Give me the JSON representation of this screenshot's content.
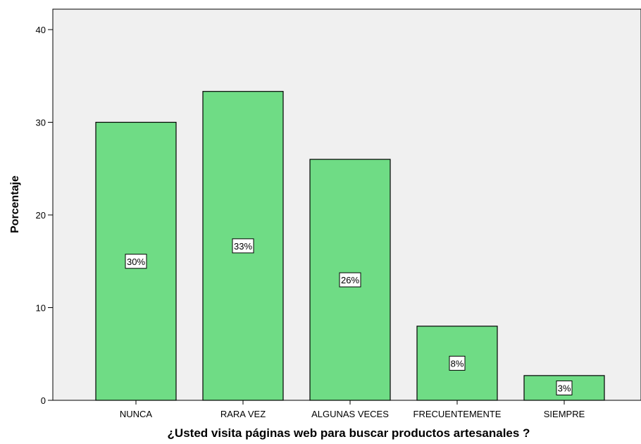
{
  "chart_data": {
    "type": "bar",
    "categories": [
      "NUNCA",
      "RARA VEZ",
      "ALGUNAS VECES",
      "FRECUENTEMENTE",
      "SIEMPRE"
    ],
    "values": [
      30,
      33.33,
      26,
      8,
      2.67
    ],
    "data_labels": [
      "30%",
      "33%",
      "26%",
      "8%",
      "3%"
    ],
    "xlabel": "¿Usted visita páginas web para buscar productos artesanales ?",
    "ylabel": "Porcentaje",
    "ylim": [
      0,
      42
    ],
    "yticks": [
      0,
      10,
      20,
      30,
      40
    ],
    "grid": false,
    "colors": {
      "bar": "#6fdc85",
      "bar_border": "#000000",
      "plot_bg": "#f0f0f0",
      "label_bg": "#ffffff"
    }
  }
}
